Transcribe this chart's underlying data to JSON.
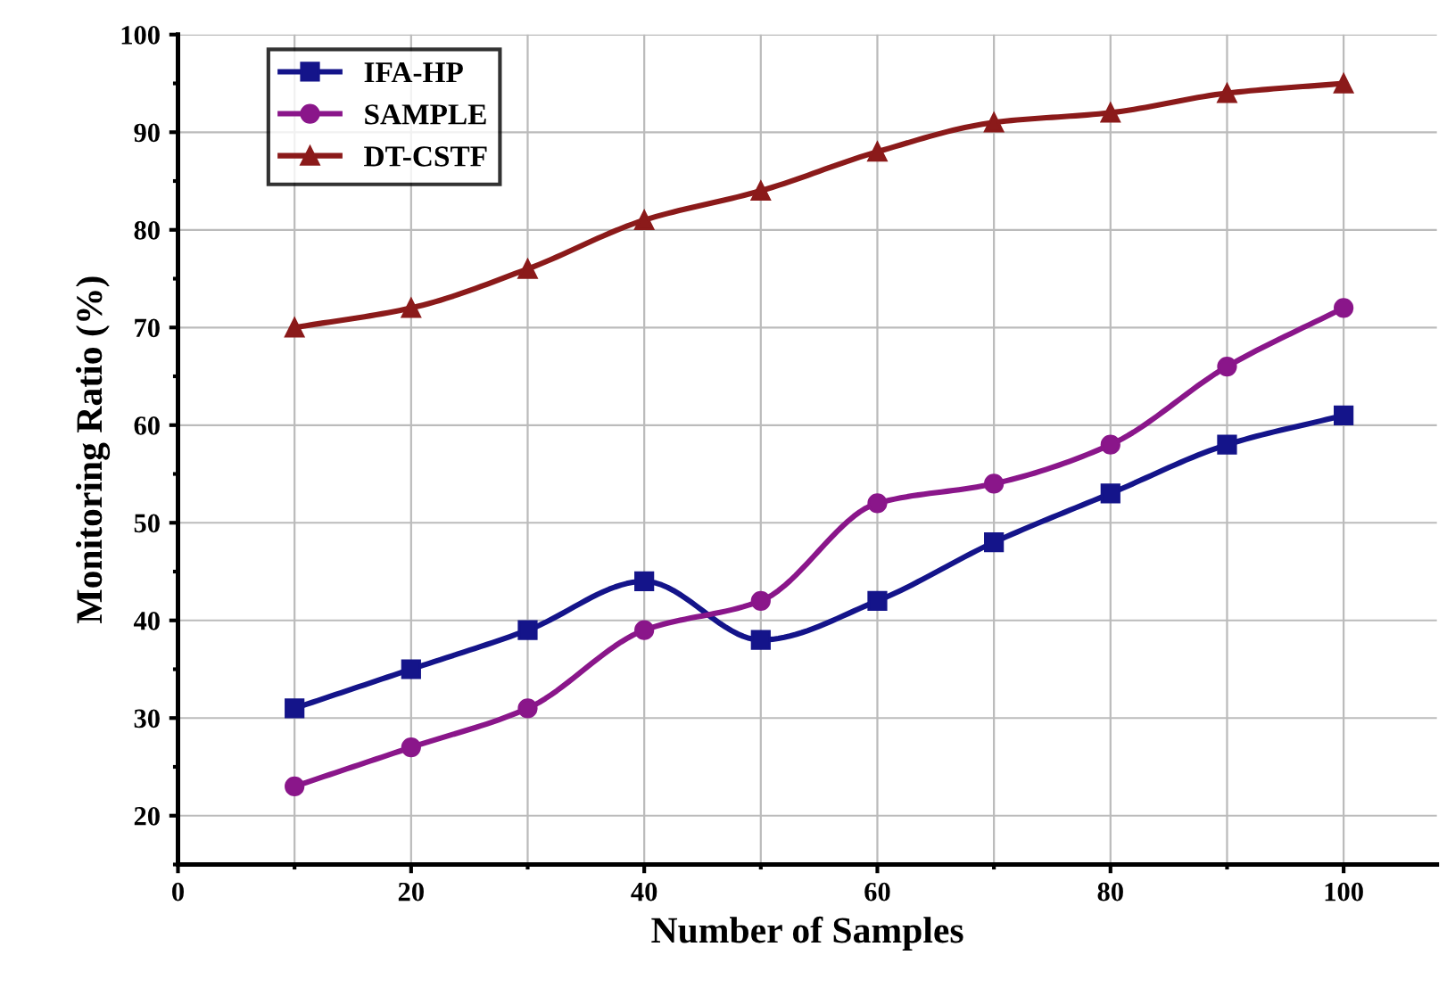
{
  "chart_data": {
    "type": "line",
    "xlabel": "Number of Samples",
    "ylabel": "Monitoring Ratio (%)",
    "x": [
      10,
      20,
      30,
      40,
      50,
      60,
      70,
      80,
      90,
      100
    ],
    "series": [
      {
        "name": "IFA-HP",
        "color": "#14148a",
        "marker": "square",
        "values": [
          31,
          35,
          39,
          44,
          38,
          42,
          48,
          53,
          58,
          61
        ]
      },
      {
        "name": "SAMPLE",
        "color": "#8a168a",
        "marker": "circle",
        "values": [
          23,
          27,
          31,
          39,
          42,
          52,
          54,
          58,
          66,
          72
        ]
      },
      {
        "name": "DT-CSTF",
        "color": "#8b1a1a",
        "marker": "triangle",
        "values": [
          70,
          72,
          76,
          81,
          84,
          88,
          91,
          92,
          94,
          95
        ]
      }
    ],
    "xlim": [
      0,
      108
    ],
    "ylim": [
      15,
      100
    ],
    "xticks": [
      0,
      20,
      40,
      60,
      80,
      100
    ],
    "yticks": [
      20,
      30,
      40,
      50,
      60,
      70,
      80,
      90,
      100
    ],
    "grid": true,
    "legend": "top left",
    "line_style": "solid"
  }
}
